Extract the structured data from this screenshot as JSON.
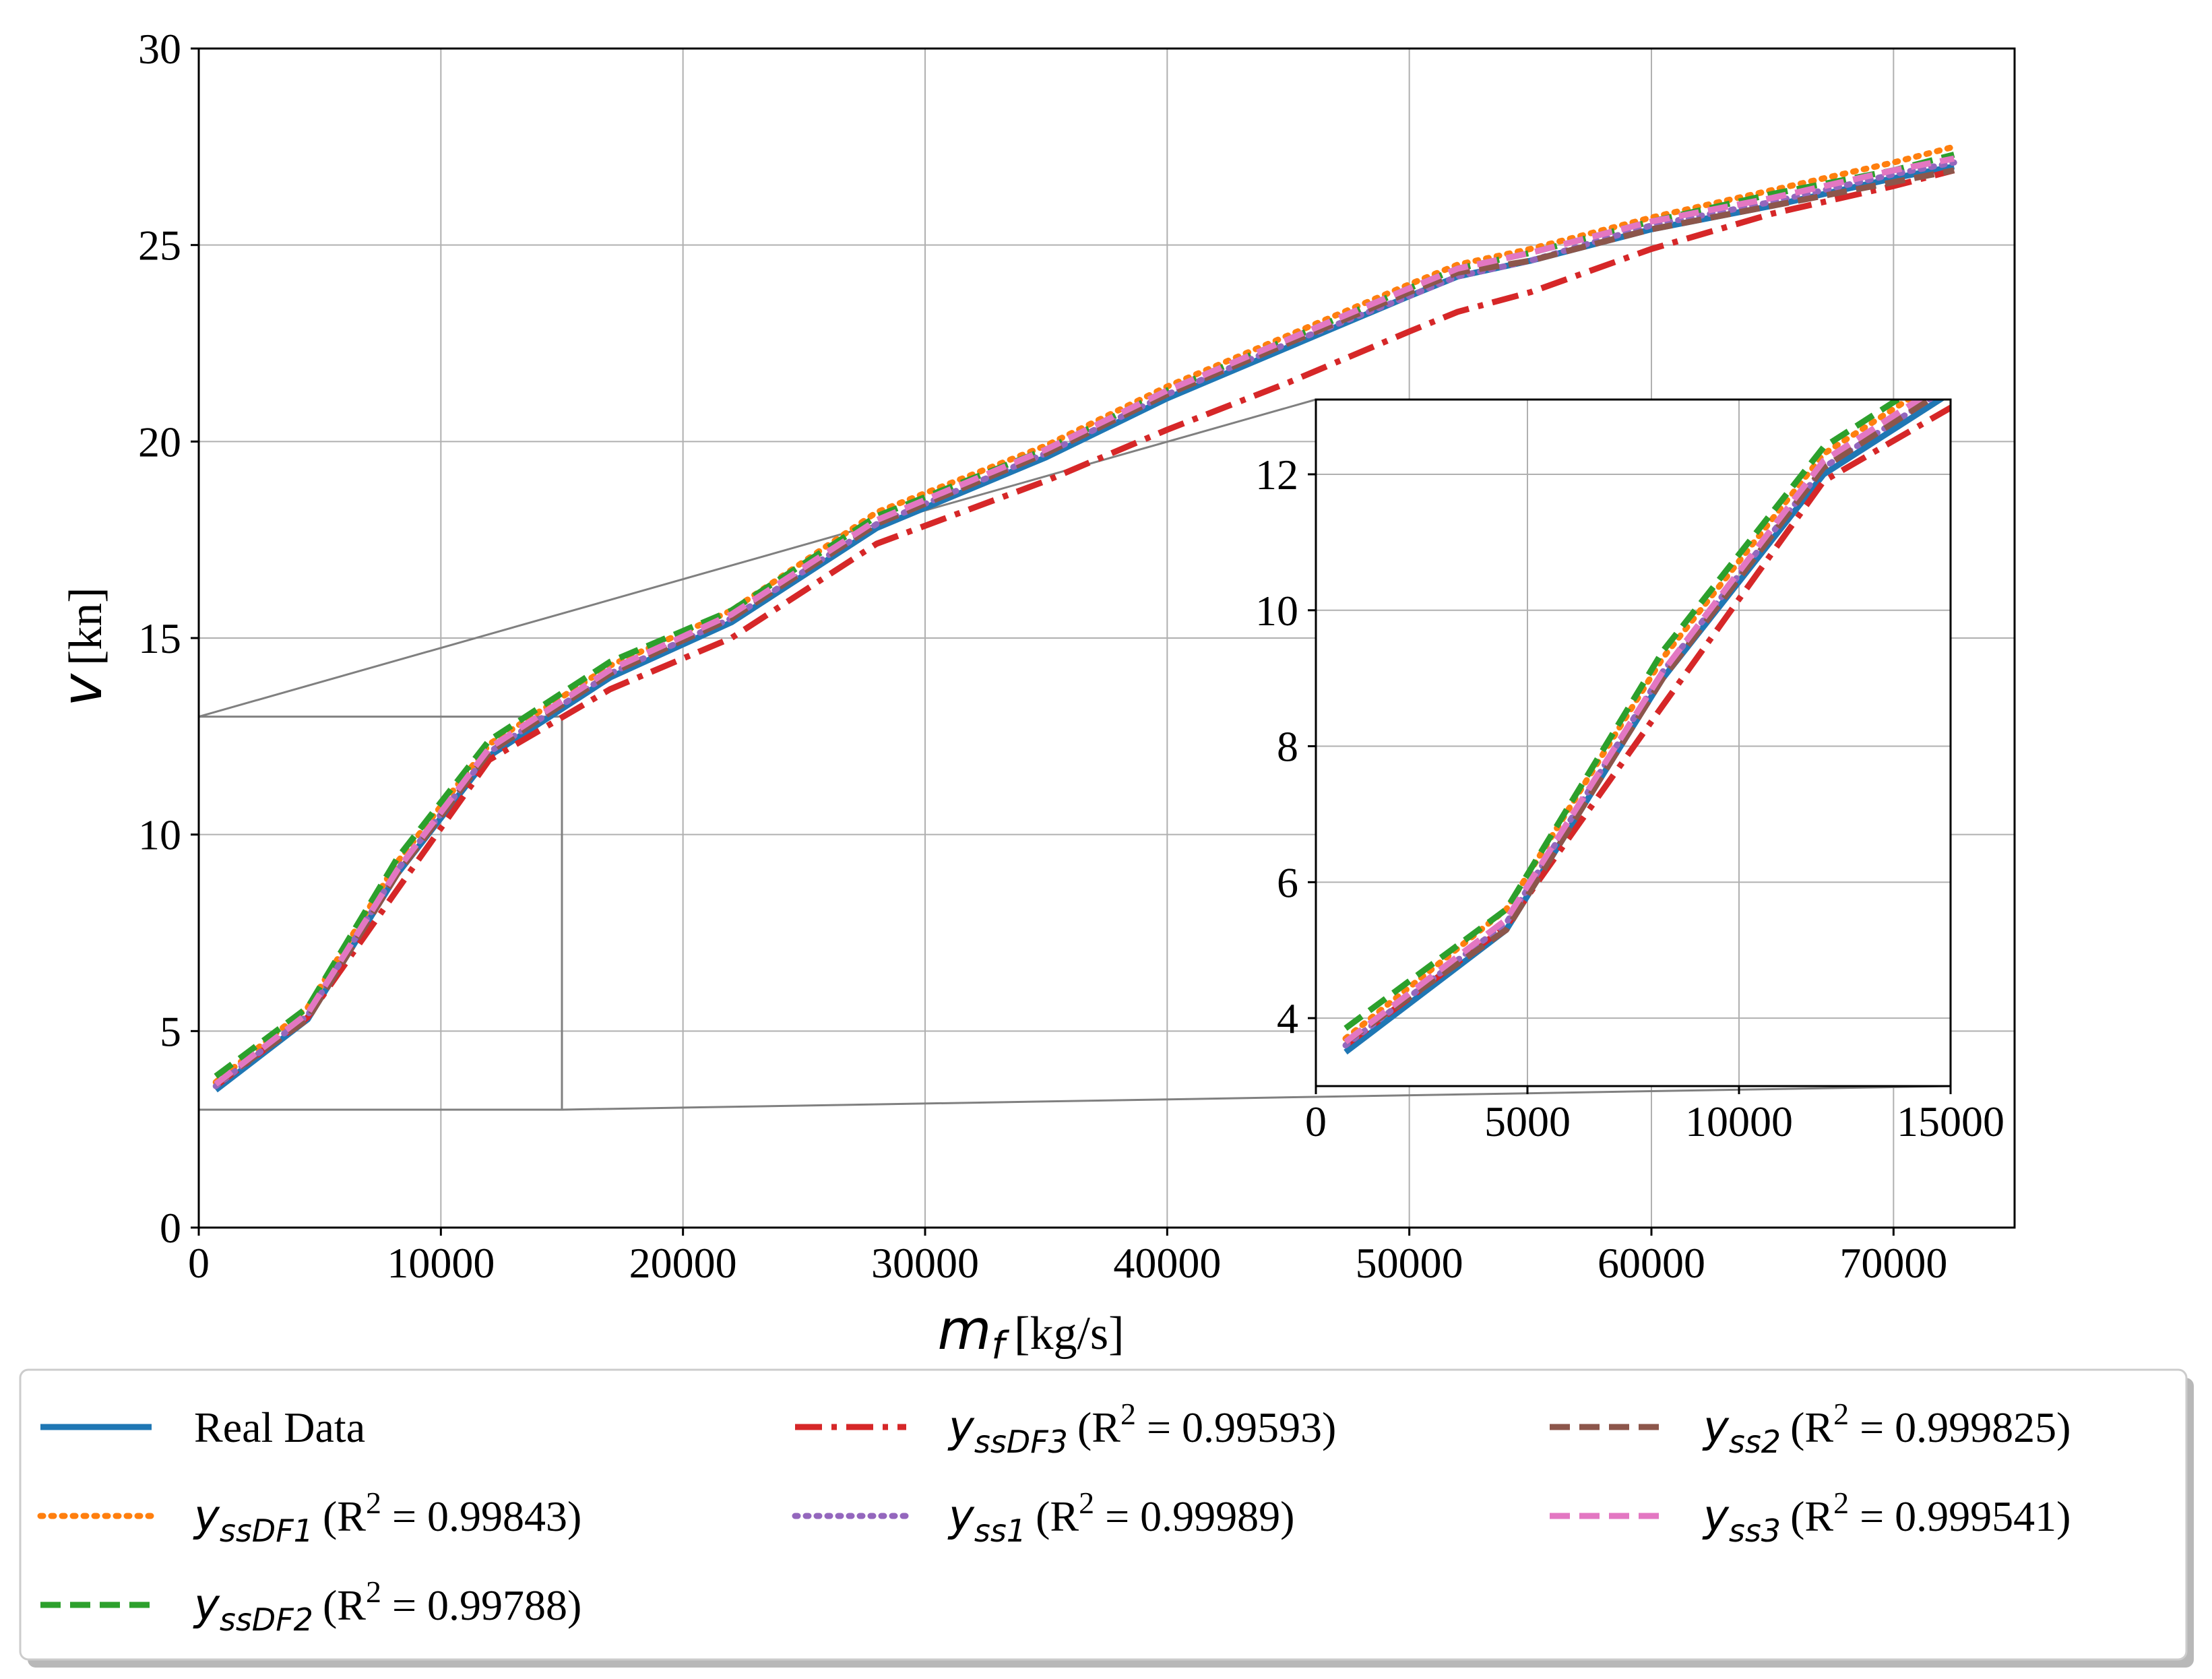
{
  "chart_data": [
    {
      "type": "line",
      "name": "main",
      "xlabel": "[kg/s]",
      "xlabel_var": "m",
      "xlabel_sub": "f",
      "ylabel": "[kn]",
      "ylabel_var": "v",
      "xlim": [
        0,
        75000
      ],
      "ylim": [
        0,
        30
      ],
      "xticks": [
        0,
        10000,
        20000,
        30000,
        40000,
        50000,
        60000,
        70000
      ],
      "yticks": [
        0,
        5,
        10,
        15,
        20,
        25,
        30
      ],
      "grid": true,
      "zoom_region": {
        "xlim": [
          0,
          15000
        ],
        "ylim": [
          3,
          13
        ]
      }
    },
    {
      "type": "line",
      "name": "inset",
      "xlim": [
        0,
        15000
      ],
      "ylim": [
        3,
        13.1
      ],
      "xticks": [
        0,
        5000,
        10000,
        15000
      ],
      "yticks": [
        4,
        6,
        8,
        10,
        12
      ],
      "grid": true
    }
  ],
  "series_x": [
    700,
    4500,
    8200,
    12000,
    17000,
    22000,
    28000,
    35000,
    40000,
    45000,
    50000,
    52000,
    55000,
    60000,
    65000,
    70000,
    72500
  ],
  "series": [
    {
      "name": "Real Data",
      "label": "Real Data",
      "color": "#1f77b4",
      "dash": "solid",
      "values": [
        3.5,
        5.3,
        9.0,
        12.0,
        14.0,
        15.4,
        17.8,
        19.6,
        21.1,
        22.4,
        23.7,
        24.2,
        24.6,
        25.4,
        26.0,
        26.7,
        27.0
      ]
    },
    {
      "name": "yssDF1",
      "sub": "ssDF1",
      "r2": "0.99843",
      "color": "#ff7f0e",
      "dash": "dotted",
      "values": [
        3.7,
        5.6,
        9.3,
        12.3,
        14.3,
        15.7,
        18.2,
        19.9,
        21.4,
        22.7,
        24.0,
        24.5,
        24.9,
        25.7,
        26.4,
        27.1,
        27.5
      ]
    },
    {
      "name": "yssDF2",
      "sub": "ssDF2",
      "r2": "0.99788",
      "color": "#2ca02c",
      "dash": "dashed",
      "values": [
        3.85,
        5.6,
        9.4,
        12.4,
        14.4,
        15.7,
        18.1,
        19.8,
        21.3,
        22.6,
        23.9,
        24.4,
        24.8,
        25.6,
        26.3,
        26.9,
        27.3
      ]
    },
    {
      "name": "yssDF3",
      "sub": "ssDF3",
      "r2": "0.99593",
      "color": "#d62728",
      "dash": "dashdot",
      "values": [
        3.6,
        5.35,
        8.6,
        11.9,
        13.7,
        15.0,
        17.4,
        19.0,
        20.3,
        21.5,
        22.8,
        23.3,
        23.8,
        24.9,
        25.8,
        26.5,
        26.9
      ]
    },
    {
      "name": "yss1",
      "sub": "ss1",
      "r2": "0.99989",
      "color": "#9467bd",
      "dash": "dotted",
      "values": [
        3.6,
        5.4,
        9.1,
        12.1,
        14.1,
        15.5,
        17.9,
        19.7,
        21.2,
        22.5,
        23.7,
        24.2,
        24.6,
        25.5,
        26.1,
        26.8,
        27.1
      ]
    },
    {
      "name": "yss2",
      "sub": "ss2",
      "r2": "0.999825",
      "color": "#8c564b",
      "dash": "dashed",
      "values": [
        3.65,
        5.3,
        9.0,
        12.1,
        14.1,
        15.5,
        17.9,
        19.7,
        21.2,
        22.5,
        23.8,
        24.3,
        24.6,
        25.4,
        26.0,
        26.6,
        26.9
      ]
    },
    {
      "name": "yss3",
      "sub": "ss3",
      "r2": "0.999541",
      "color": "#e377c2",
      "dash": "dashed",
      "values": [
        3.65,
        5.45,
        9.1,
        12.2,
        14.2,
        15.6,
        18.0,
        19.8,
        21.3,
        22.6,
        23.9,
        24.4,
        24.8,
        25.6,
        26.2,
        26.9,
        27.2
      ]
    }
  ],
  "legend": {
    "placement": "bottom",
    "r2_prefix": "(R",
    "r2_sup": "2",
    "r2_eq": " = ",
    "r2_suffix": ")",
    "y_var": "y"
  }
}
